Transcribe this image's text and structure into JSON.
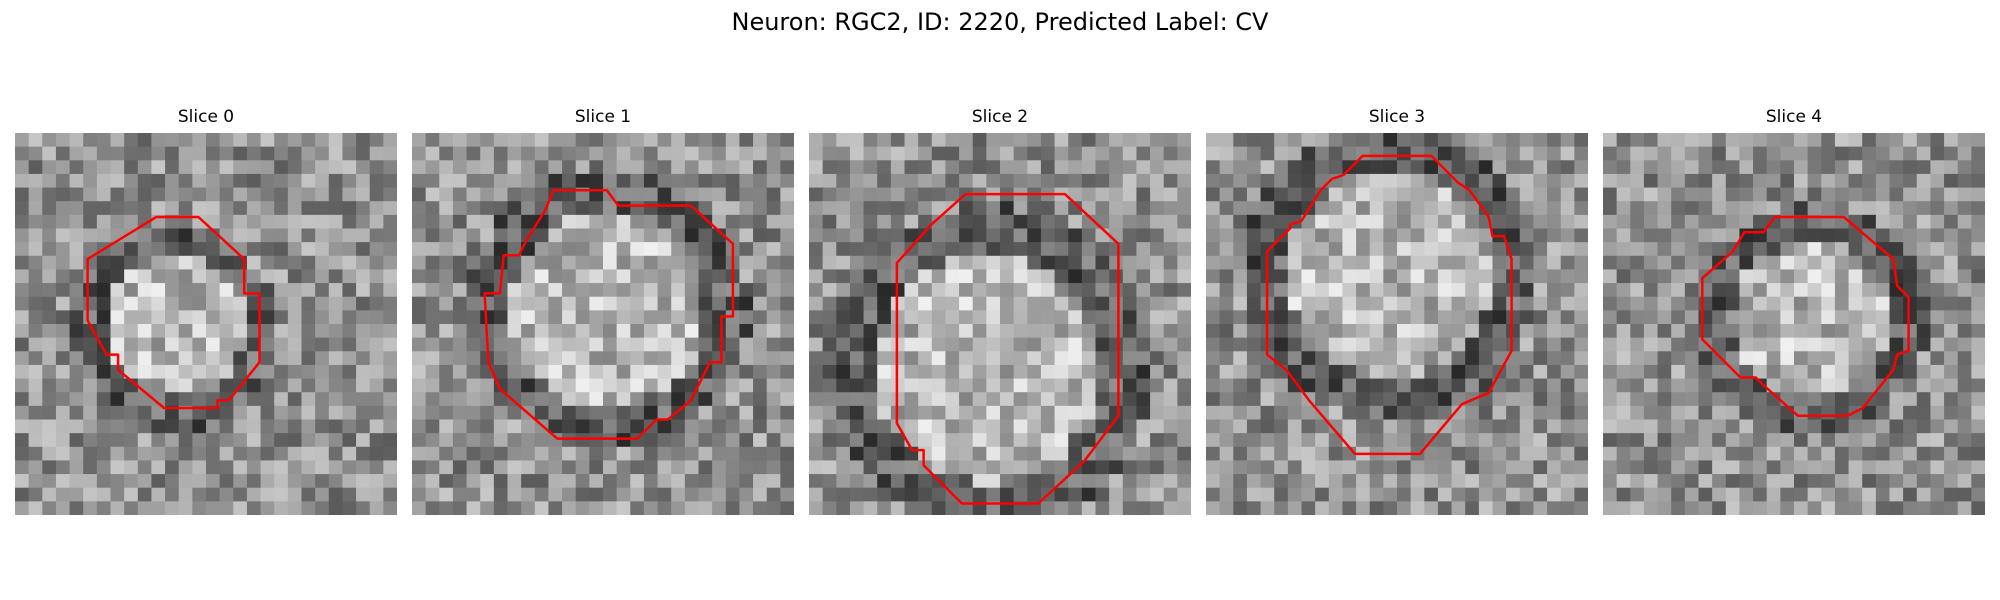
{
  "figure": {
    "title": "Neuron: RGC2, ID: 2220, Predicted Label: CV"
  },
  "contour_color": "#ff0000",
  "slices": [
    {
      "title": "Slice 0",
      "contour": [
        [
          0.37,
          0.22
        ],
        [
          0.48,
          0.22
        ],
        [
          0.6,
          0.33
        ],
        [
          0.6,
          0.42
        ],
        [
          0.64,
          0.42
        ],
        [
          0.64,
          0.6
        ],
        [
          0.56,
          0.7
        ],
        [
          0.53,
          0.7
        ],
        [
          0.53,
          0.72
        ],
        [
          0.39,
          0.72
        ],
        [
          0.27,
          0.62
        ],
        [
          0.27,
          0.58
        ],
        [
          0.24,
          0.58
        ],
        [
          0.2,
          0.51
        ],
        [
          0.19,
          0.49
        ],
        [
          0.19,
          0.33
        ]
      ]
    },
    {
      "title": "Slice 1",
      "contour": [
        [
          0.37,
          0.15
        ],
        [
          0.51,
          0.15
        ],
        [
          0.54,
          0.19
        ],
        [
          0.73,
          0.19
        ],
        [
          0.84,
          0.29
        ],
        [
          0.84,
          0.48
        ],
        [
          0.81,
          0.48
        ],
        [
          0.81,
          0.6
        ],
        [
          0.78,
          0.6
        ],
        [
          0.73,
          0.7
        ],
        [
          0.67,
          0.75
        ],
        [
          0.64,
          0.75
        ],
        [
          0.59,
          0.8
        ],
        [
          0.38,
          0.8
        ],
        [
          0.23,
          0.67
        ],
        [
          0.2,
          0.6
        ],
        [
          0.19,
          0.42
        ],
        [
          0.23,
          0.42
        ],
        [
          0.24,
          0.32
        ],
        [
          0.28,
          0.32
        ],
        [
          0.3,
          0.28
        ],
        [
          0.35,
          0.2
        ]
      ]
    },
    {
      "title": "Slice 2",
      "contour": [
        [
          0.41,
          0.16
        ],
        [
          0.67,
          0.16
        ],
        [
          0.81,
          0.29
        ],
        [
          0.81,
          0.74
        ],
        [
          0.72,
          0.86
        ],
        [
          0.6,
          0.97
        ],
        [
          0.4,
          0.97
        ],
        [
          0.3,
          0.87
        ],
        [
          0.3,
          0.83
        ],
        [
          0.27,
          0.83
        ],
        [
          0.23,
          0.76
        ],
        [
          0.23,
          0.34
        ],
        [
          0.32,
          0.24
        ]
      ]
    },
    {
      "title": "Slice 3",
      "contour": [
        [
          0.41,
          0.06
        ],
        [
          0.59,
          0.06
        ],
        [
          0.66,
          0.13
        ],
        [
          0.69,
          0.15
        ],
        [
          0.74,
          0.22
        ],
        [
          0.75,
          0.27
        ],
        [
          0.78,
          0.27
        ],
        [
          0.8,
          0.33
        ],
        [
          0.8,
          0.57
        ],
        [
          0.74,
          0.68
        ],
        [
          0.67,
          0.71
        ],
        [
          0.56,
          0.84
        ],
        [
          0.39,
          0.84
        ],
        [
          0.27,
          0.7
        ],
        [
          0.21,
          0.62
        ],
        [
          0.16,
          0.58
        ],
        [
          0.16,
          0.31
        ],
        [
          0.22,
          0.25
        ],
        [
          0.22,
          0.24
        ],
        [
          0.25,
          0.23
        ],
        [
          0.3,
          0.15
        ],
        [
          0.33,
          0.12
        ],
        [
          0.36,
          0.11
        ]
      ]
    },
    {
      "title": "Slice 4",
      "contour": [
        [
          0.45,
          0.22
        ],
        [
          0.63,
          0.22
        ],
        [
          0.76,
          0.33
        ],
        [
          0.77,
          0.4
        ],
        [
          0.8,
          0.43
        ],
        [
          0.8,
          0.57
        ],
        [
          0.77,
          0.58
        ],
        [
          0.76,
          0.62
        ],
        [
          0.68,
          0.72
        ],
        [
          0.64,
          0.74
        ],
        [
          0.51,
          0.74
        ],
        [
          0.42,
          0.66
        ],
        [
          0.4,
          0.64
        ],
        [
          0.36,
          0.64
        ],
        [
          0.26,
          0.54
        ],
        [
          0.26,
          0.38
        ],
        [
          0.34,
          0.31
        ],
        [
          0.37,
          0.26
        ],
        [
          0.42,
          0.26
        ]
      ]
    }
  ]
}
